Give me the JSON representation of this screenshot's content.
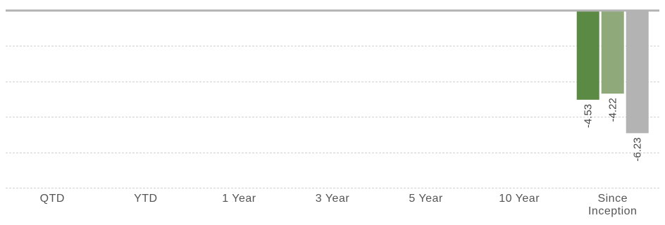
{
  "chart_data": {
    "type": "bar",
    "categories": [
      "QTD",
      "YTD",
      "1 Year",
      "3 Year",
      "5 Year",
      "10 Year",
      "Since Inception"
    ],
    "category_lines": [
      [
        "QTD"
      ],
      [
        "YTD"
      ],
      [
        "1 Year"
      ],
      [
        "3 Year"
      ],
      [
        "5 Year"
      ],
      [
        "10 Year"
      ],
      [
        "Since",
        "Inception"
      ]
    ],
    "series": [
      {
        "color": "#5a8a44",
        "values": [
          null,
          null,
          null,
          null,
          null,
          null,
          -4.53
        ]
      },
      {
        "color": "#8fa97a",
        "values": [
          null,
          null,
          null,
          null,
          null,
          null,
          -4.22
        ]
      },
      {
        "color": "#b3b3b3",
        "values": [
          null,
          null,
          null,
          null,
          null,
          null,
          -6.23
        ]
      }
    ],
    "value_labels": [
      "-4.53",
      "-4.22",
      "-6.23"
    ],
    "ylim": [
      -8.5,
      0
    ],
    "grid_values": [
      -1.8,
      -3.6,
      -5.4,
      -7.2,
      -9.0
    ],
    "grid": true,
    "legend": "none"
  }
}
